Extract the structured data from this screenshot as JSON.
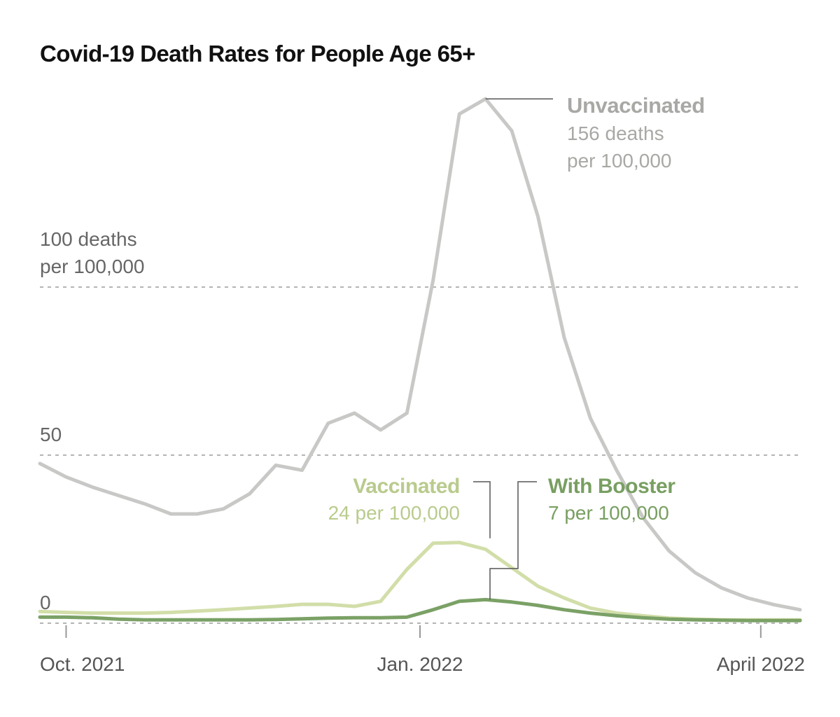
{
  "chart_data": {
    "type": "line",
    "title": "Covid-19 Death Rates for People Age 65+",
    "xlabel": "",
    "ylabel": "",
    "ylim": [
      -3,
      160
    ],
    "grid": true,
    "legend": "direct labels",
    "y_ticks": [
      {
        "value": 100,
        "lines": [
          "100 deaths",
          "per 100,000"
        ]
      },
      {
        "value": 50,
        "lines": [
          "50"
        ]
      },
      {
        "value": 0,
        "lines": [
          "0"
        ]
      }
    ],
    "x_ticks": [
      {
        "week": 1,
        "label": "Oct. 2021"
      },
      {
        "week": 14.5,
        "label": "Jan. 2022"
      },
      {
        "week": 27.5,
        "label": "April 2022"
      }
    ],
    "series": [
      {
        "name": "Unvaccinated",
        "annotation": [
          "Unvaccinated",
          "156 deaths",
          "per 100,000"
        ],
        "color": "#c8c8c6",
        "label_color": "#a8a8a5",
        "values": [
          47.5,
          43.5,
          40.5,
          38,
          35.5,
          32.5,
          32.5,
          34,
          38.5,
          47,
          45.5,
          59.5,
          62.5,
          57.5,
          62.5,
          102,
          151.5,
          156,
          146.5,
          121,
          85,
          61,
          45.5,
          31.5,
          21.5,
          15,
          10.5,
          7.5,
          5.5,
          4
        ]
      },
      {
        "name": "Vaccinated",
        "annotation": [
          "Vaccinated",
          "24 per 100,000"
        ],
        "color": "#d2dea9",
        "label_color": "#b9cb8d",
        "values": [
          3.5,
          3.2,
          3,
          3,
          3,
          3.2,
          3.6,
          4,
          4.5,
          5,
          5.6,
          5.6,
          5,
          6.5,
          16,
          23.8,
          24,
          22,
          16.5,
          11,
          7.5,
          4.5,
          3,
          2.2,
          1.5,
          1.2,
          1,
          1,
          1,
          1
        ]
      },
      {
        "name": "With Booster",
        "annotation": [
          "With Booster",
          "7 per 100,000"
        ],
        "color": "#7ba166",
        "label_color": "#789f61",
        "values": [
          1.8,
          1.8,
          1.6,
          1.2,
          1,
          1,
          1,
          1,
          1,
          1.1,
          1.3,
          1.5,
          1.6,
          1.6,
          1.8,
          4,
          6.5,
          7,
          6.3,
          5.3,
          4,
          3,
          2.2,
          1.6,
          1.2,
          1,
          0.9,
          0.8,
          0.8,
          0.8
        ]
      }
    ]
  }
}
